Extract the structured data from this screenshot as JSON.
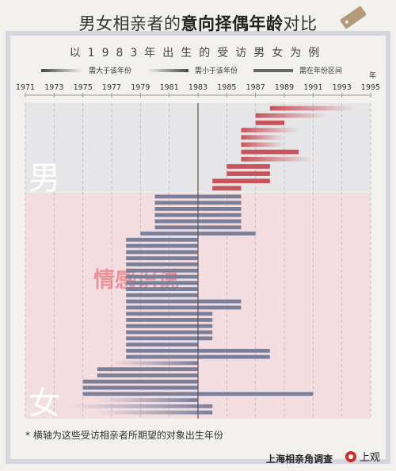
{
  "header": {
    "title_prefix": "男女相亲者的",
    "title_bold": "意向择偶年龄",
    "title_suffix": "对比",
    "subtitle": "以1983年出生的受访男女为例"
  },
  "legend": {
    "older": "需大于该年份",
    "younger": "需小于该年份",
    "range": "需在年份区间"
  },
  "note": "* 横轴为这些受访相亲者所期望的对象出生年份",
  "footer": {
    "source": "上海相亲角调查",
    "brand": "上观"
  },
  "watermark": "情感识说",
  "colors": {
    "male_bg": "#e6e6e9",
    "female_bg": "#f4dde0",
    "male_bar": "#c8535a",
    "female_bar": "#7a7f9a",
    "ref_line": "#555555"
  },
  "chart_data": {
    "type": "bar",
    "orientation": "horizontal-range",
    "x_unit": "年",
    "xlim": [
      1971,
      1995
    ],
    "xticks": [
      1971,
      1973,
      1975,
      1977,
      1979,
      1981,
      1983,
      1985,
      1987,
      1989,
      1991,
      1993,
      1995
    ],
    "reference_year": 1983,
    "groups": [
      {
        "name": "男",
        "bars": [
          {
            "start": 1988,
            "end": 1994,
            "kind": "older"
          },
          {
            "start": 1987,
            "end": 1992,
            "kind": "older"
          },
          {
            "start": 1987,
            "end": 1989,
            "kind": "range"
          },
          {
            "start": 1986,
            "end": 1990,
            "kind": "older"
          },
          {
            "start": 1986,
            "end": 1989,
            "kind": "older"
          },
          {
            "start": 1986,
            "end": 1989,
            "kind": "older"
          },
          {
            "start": 1986,
            "end": 1990,
            "kind": "range"
          },
          {
            "start": 1986,
            "end": 1991,
            "kind": "older"
          },
          {
            "start": 1985,
            "end": 1988,
            "kind": "range"
          },
          {
            "start": 1985,
            "end": 1988,
            "kind": "range"
          },
          {
            "start": 1984,
            "end": 1988,
            "kind": "range"
          },
          {
            "start": 1984,
            "end": 1986,
            "kind": "range"
          }
        ]
      },
      {
        "name": "女",
        "bars": [
          {
            "start": 1980,
            "end": 1986,
            "kind": "range"
          },
          {
            "start": 1980,
            "end": 1986,
            "kind": "range"
          },
          {
            "start": 1980,
            "end": 1986,
            "kind": "range"
          },
          {
            "start": 1980,
            "end": 1986,
            "kind": "range"
          },
          {
            "start": 1980,
            "end": 1986,
            "kind": "range"
          },
          {
            "start": 1980,
            "end": 1986,
            "kind": "range"
          },
          {
            "start": 1979,
            "end": 1987,
            "kind": "range"
          },
          {
            "start": 1978,
            "end": 1983,
            "kind": "range"
          },
          {
            "start": 1978,
            "end": 1983,
            "kind": "range"
          },
          {
            "start": 1978,
            "end": 1983,
            "kind": "range"
          },
          {
            "start": 1978,
            "end": 1983,
            "kind": "range"
          },
          {
            "start": 1978,
            "end": 1983,
            "kind": "range"
          },
          {
            "start": 1978,
            "end": 1983,
            "kind": "range"
          },
          {
            "start": 1978,
            "end": 1983,
            "kind": "range"
          },
          {
            "start": 1978,
            "end": 1983,
            "kind": "range"
          },
          {
            "start": 1978,
            "end": 1983,
            "kind": "range"
          },
          {
            "start": 1978,
            "end": 1983,
            "kind": "range"
          },
          {
            "start": 1978,
            "end": 1986,
            "kind": "range"
          },
          {
            "start": 1978,
            "end": 1986,
            "kind": "range"
          },
          {
            "start": 1978,
            "end": 1984,
            "kind": "range"
          },
          {
            "start": 1978,
            "end": 1984,
            "kind": "range"
          },
          {
            "start": 1978,
            "end": 1984,
            "kind": "range"
          },
          {
            "start": 1978,
            "end": 1984,
            "kind": "range"
          },
          {
            "start": 1978,
            "end": 1984,
            "kind": "range"
          },
          {
            "start": 1978,
            "end": 1983,
            "kind": "range"
          },
          {
            "start": 1978,
            "end": 1988,
            "kind": "range"
          },
          {
            "start": 1978,
            "end": 1988,
            "kind": "range"
          },
          {
            "start": 1977,
            "end": 1983,
            "kind": "younger"
          },
          {
            "start": 1976,
            "end": 1983,
            "kind": "range"
          },
          {
            "start": 1976,
            "end": 1983,
            "kind": "range"
          },
          {
            "start": 1975,
            "end": 1983,
            "kind": "range"
          },
          {
            "start": 1975,
            "end": 1983,
            "kind": "range"
          },
          {
            "start": 1975,
            "end": 1991,
            "kind": "range"
          },
          {
            "start": 1976,
            "end": 1983,
            "kind": "younger"
          },
          {
            "start": 1974,
            "end": 1984,
            "kind": "younger"
          },
          {
            "start": 1976,
            "end": 1984,
            "kind": "younger"
          }
        ]
      }
    ]
  }
}
